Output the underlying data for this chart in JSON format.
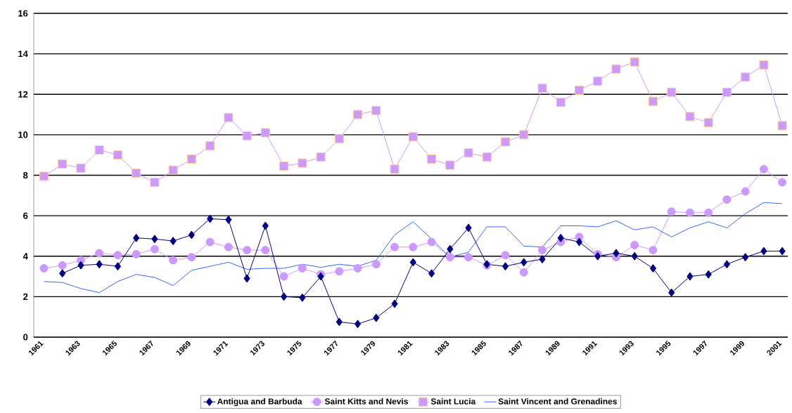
{
  "chart_data": {
    "type": "line",
    "categories": [
      "1961",
      null,
      "1963",
      null,
      "1965",
      null,
      "1967",
      null,
      "1969",
      null,
      "1971",
      null,
      "1973",
      null,
      "1975",
      null,
      "1977",
      null,
      "1979",
      null,
      "1981",
      null,
      "1983",
      null,
      "1985",
      null,
      "1987",
      null,
      "1989",
      null,
      "1991",
      null,
      "1993",
      null,
      "1995",
      null,
      "1997",
      null,
      "1999",
      null,
      "2001"
    ],
    "series": [
      {
        "name": "Antigua and Barbuda",
        "color": "#000080",
        "marker": "diamond",
        "values": [
          null,
          3.15,
          3.55,
          3.6,
          3.5,
          4.9,
          4.85,
          4.75,
          5.05,
          5.85,
          5.8,
          2.9,
          5.5,
          2.0,
          1.95,
          3.0,
          0.75,
          0.65,
          0.95,
          1.65,
          3.7,
          3.15,
          4.35,
          5.4,
          3.6,
          3.5,
          3.7,
          3.85,
          4.9,
          4.7,
          4.0,
          4.15,
          4.0,
          3.4,
          2.2,
          3.0,
          3.1,
          3.6,
          3.95,
          4.25,
          4.25
        ]
      },
      {
        "name": "Saint Kitts and Nevis",
        "color": "#cc99ff",
        "marker": "circle",
        "values": [
          3.4,
          3.55,
          3.8,
          4.15,
          4.05,
          4.1,
          4.35,
          3.8,
          3.95,
          4.7,
          4.45,
          4.3,
          4.3,
          3.0,
          3.4,
          3.1,
          3.25,
          3.4,
          3.6,
          4.45,
          4.45,
          4.7,
          3.95,
          3.95,
          3.55,
          4.05,
          3.2,
          4.3,
          4.7,
          4.95,
          4.1,
          3.95,
          4.55,
          4.3,
          6.2,
          6.15,
          6.15,
          6.8,
          7.2,
          8.3,
          7.65
        ]
      },
      {
        "name": "Saint Lucia",
        "color": "#cc99ff",
        "marker": "square",
        "values": [
          7.95,
          8.55,
          8.35,
          9.25,
          9.0,
          8.1,
          7.65,
          8.25,
          8.8,
          9.45,
          10.85,
          9.95,
          10.1,
          8.45,
          8.6,
          8.9,
          9.8,
          11.0,
          11.2,
          8.3,
          9.9,
          8.8,
          8.5,
          9.1,
          8.9,
          9.65,
          10.0,
          12.3,
          11.6,
          12.2,
          12.65,
          13.25,
          13.6,
          11.65,
          12.1,
          10.9,
          10.6,
          12.1,
          12.85,
          13.45,
          10.45
        ]
      },
      {
        "name": "Saint Vincent and Grenadines",
        "color": "#3366ff",
        "marker": "none",
        "values": [
          2.75,
          2.7,
          2.4,
          2.2,
          2.75,
          3.1,
          2.95,
          2.55,
          3.3,
          3.5,
          3.7,
          3.35,
          3.4,
          3.4,
          3.6,
          3.45,
          3.6,
          3.5,
          3.8,
          5.05,
          5.7,
          4.85,
          3.95,
          4.2,
          5.45,
          5.45,
          4.5,
          4.45,
          5.5,
          5.5,
          5.45,
          5.75,
          5.3,
          5.45,
          4.95,
          5.4,
          5.7,
          5.4,
          6.1,
          6.65,
          6.6
        ]
      }
    ],
    "ylim": [
      0,
      16
    ],
    "yticks": [
      0,
      2,
      4,
      6,
      8,
      10,
      12,
      14,
      16
    ],
    "grid": "y",
    "legend": "bottom"
  }
}
